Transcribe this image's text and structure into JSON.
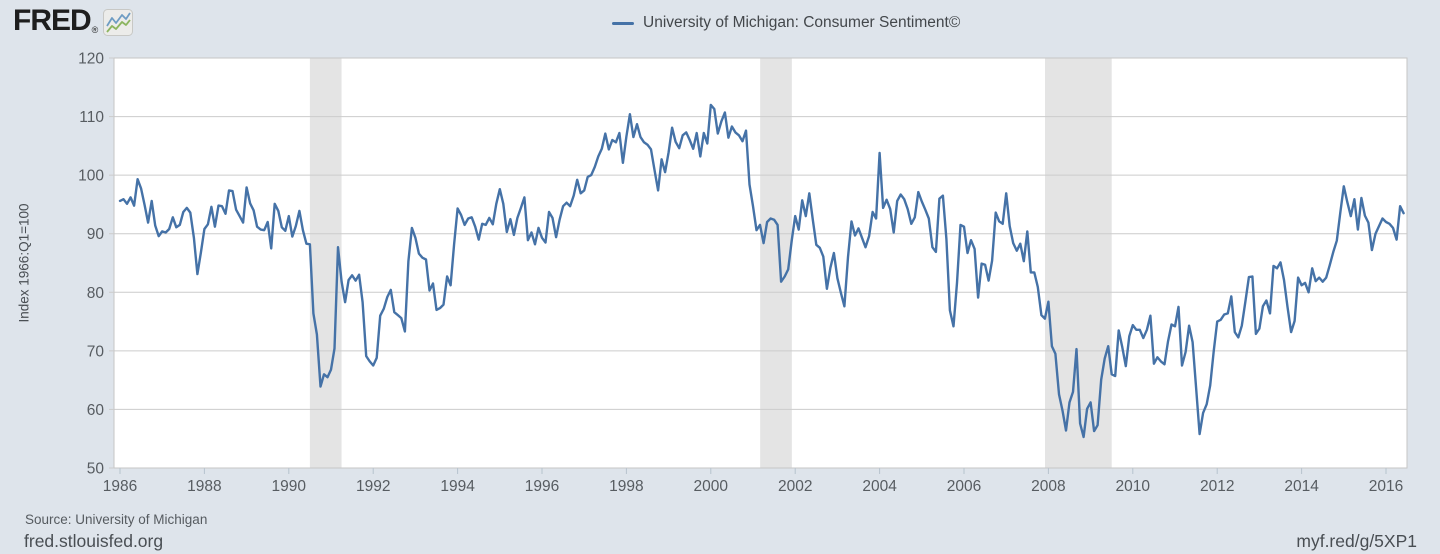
{
  "header": {
    "logo_text": "FRED",
    "logo_reg": "®",
    "legend": {
      "label": "University of Michigan: Consumer Sentiment©",
      "line_color": "#4572a7"
    }
  },
  "chart_data": {
    "type": "line",
    "title": "University of Michigan: Consumer Sentiment",
    "ylabel": "Index 1966:Q1=100",
    "xlabel": "",
    "frequency": "monthly",
    "x_start": "1986-01",
    "x_end": "2016-06",
    "ylim": [
      50,
      120
    ],
    "y_ticks": [
      50,
      60,
      70,
      80,
      90,
      100,
      110,
      120
    ],
    "x_ticks": [
      1986,
      1988,
      1990,
      1992,
      1994,
      1996,
      1998,
      2000,
      2002,
      2004,
      2006,
      2008,
      2010,
      2012,
      2014,
      2016
    ],
    "grid": "horizontal",
    "legend_position": "top-center",
    "recession_bands": [
      [
        1990.5,
        1991.25
      ],
      [
        2001.17,
        2001.92
      ],
      [
        2007.92,
        2009.5
      ]
    ],
    "values": [
      95.6,
      95.9,
      95.1,
      96.2,
      94.8,
      99.3,
      97.7,
      94.9,
      91.9,
      95.6,
      91.4,
      89.6,
      90.4,
      90.2,
      90.8,
      92.8,
      91.1,
      91.5,
      93.7,
      94.4,
      93.6,
      89.3,
      83.1,
      86.8,
      90.8,
      91.6,
      94.6,
      91.2,
      94.8,
      94.7,
      93.4,
      97.4,
      97.3,
      94.1,
      93.0,
      91.9,
      97.9,
      95.2,
      94.0,
      91.2,
      90.7,
      90.6,
      92.0,
      87.5,
      95.1,
      93.9,
      91.1,
      90.5,
      93.0,
      89.5,
      91.3,
      93.9,
      90.6,
      88.3,
      88.2,
      76.4,
      72.8,
      63.9,
      66.0,
      65.5,
      66.8,
      70.4,
      87.7,
      81.8,
      78.3,
      82.1,
      82.9,
      82.0,
      83.0,
      78.3,
      69.1,
      68.2,
      67.5,
      68.8,
      76.0,
      77.2,
      79.2,
      80.4,
      76.6,
      76.1,
      75.6,
      73.3,
      85.3,
      91.0,
      89.3,
      86.6,
      85.9,
      85.6,
      80.3,
      81.5,
      77.0,
      77.3,
      77.9,
      82.7,
      81.2,
      88.2,
      94.3,
      93.2,
      91.5,
      92.6,
      92.8,
      91.2,
      89.0,
      91.7,
      91.5,
      92.7,
      91.6,
      95.1,
      97.6,
      95.1,
      90.3,
      92.5,
      89.8,
      92.7,
      94.4,
      96.2,
      88.9,
      90.2,
      88.2,
      91.0,
      89.3,
      88.5,
      93.7,
      92.7,
      89.4,
      92.4,
      94.7,
      95.3,
      94.7,
      96.5,
      99.2,
      96.9,
      97.4,
      99.7,
      100.0,
      101.4,
      103.2,
      104.5,
      107.1,
      104.4,
      106.0,
      105.6,
      107.2,
      102.1,
      106.6,
      110.4,
      106.5,
      108.7,
      106.5,
      105.6,
      105.2,
      104.4,
      100.9,
      97.4,
      102.7,
      100.5,
      103.9,
      108.1,
      105.7,
      104.6,
      106.8,
      107.3,
      106.0,
      104.5,
      107.2,
      103.2,
      107.2,
      105.4,
      112.0,
      111.3,
      107.1,
      109.2,
      110.7,
      106.4,
      108.3,
      107.3,
      106.8,
      105.8,
      107.6,
      98.4,
      94.7,
      90.6,
      91.5,
      88.4,
      92.0,
      92.6,
      92.4,
      91.5,
      81.8,
      82.7,
      83.9,
      88.8,
      93.0,
      90.7,
      95.7,
      93.0,
      96.9,
      92.4,
      88.1,
      87.6,
      86.1,
      80.6,
      84.2,
      86.7,
      82.4,
      79.9,
      77.6,
      86.0,
      92.1,
      89.7,
      90.9,
      89.3,
      87.7,
      89.6,
      93.7,
      92.6,
      103.8,
      94.4,
      95.8,
      94.2,
      90.2,
      95.6,
      96.7,
      95.9,
      94.2,
      91.7,
      92.8,
      97.1,
      95.5,
      94.1,
      92.6,
      87.7,
      86.9,
      96.0,
      96.5,
      89.1,
      76.9,
      74.2,
      81.6,
      91.5,
      91.2,
      86.7,
      88.9,
      87.4,
      79.1,
      84.9,
      84.7,
      82.0,
      85.4,
      93.6,
      92.1,
      91.7,
      96.9,
      91.3,
      88.4,
      87.1,
      88.3,
      85.3,
      90.4,
      83.4,
      83.4,
      80.9,
      76.1,
      75.5,
      78.4,
      70.8,
      69.5,
      62.6,
      59.8,
      56.4,
      61.2,
      63.0,
      70.3,
      57.6,
      55.3,
      60.1,
      61.2,
      56.3,
      57.3,
      65.1,
      68.7,
      70.8,
      66.0,
      65.7,
      73.5,
      70.6,
      67.4,
      72.5,
      74.4,
      73.6,
      73.6,
      72.2,
      73.6,
      76.0,
      67.8,
      68.9,
      68.2,
      67.7,
      71.6,
      74.5,
      74.2,
      77.5,
      67.5,
      69.8,
      74.3,
      71.5,
      63.7,
      55.8,
      59.4,
      60.9,
      64.1,
      69.9,
      75.0,
      75.3,
      76.2,
      76.4,
      79.3,
      73.2,
      72.3,
      74.3,
      78.3,
      82.6,
      82.7,
      72.9,
      73.8,
      77.6,
      78.6,
      76.4,
      84.5,
      84.1,
      85.1,
      82.1,
      77.5,
      73.2,
      75.1,
      82.5,
      81.2,
      81.6,
      80.0,
      84.1,
      81.9,
      82.5,
      81.8,
      82.5,
      84.6,
      86.9,
      88.8,
      93.6,
      98.1,
      95.4,
      93.0,
      95.9,
      90.7,
      96.1,
      93.1,
      91.9,
      87.2,
      90.0,
      91.3,
      92.6,
      92.0,
      91.7,
      91.0,
      89.0,
      94.7,
      93.5
    ]
  },
  "footer": {
    "source": "Source: University of Michigan",
    "site": "fred.stlouisfed.org",
    "short_url": "myf.red/g/5XP1"
  },
  "colors": {
    "page_background": "#dee4eb",
    "plot_background": "#ffffff",
    "gridline": "#cccccc",
    "plot_border": "#c6c6c6",
    "recession_band": "#e4e4e4",
    "line": "#4572a7",
    "axis_text": "#575c61",
    "tick_mark": "#b7c3ce"
  }
}
